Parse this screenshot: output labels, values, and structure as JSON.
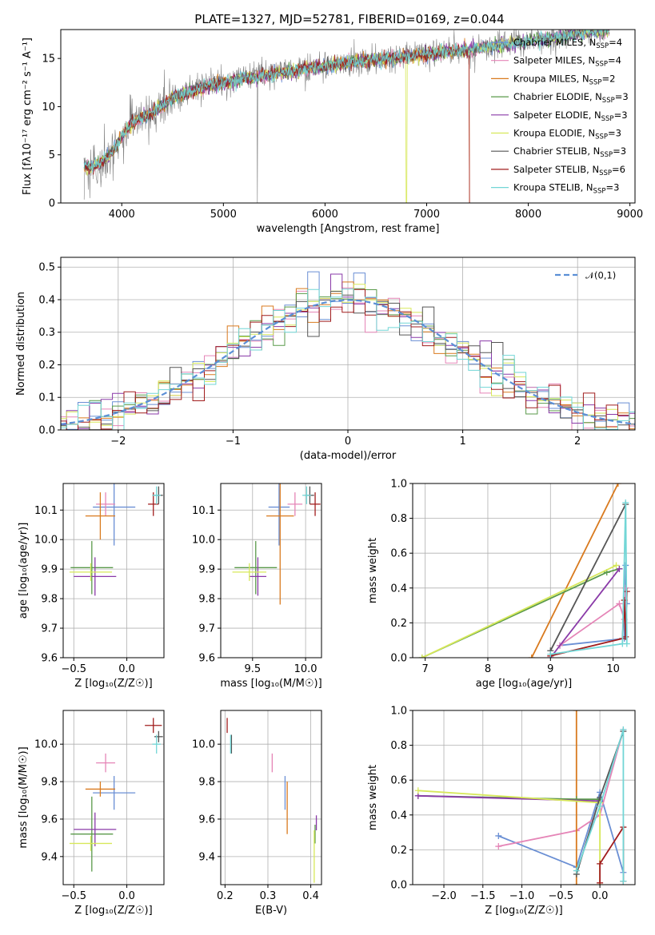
{
  "figure": {
    "title": "PLATE=1327, MJD=52781, FIBERID=0169, z=0.044"
  },
  "colors": {
    "Chabrier MILES": "#6a8fd4",
    "Salpeter MILES": "#e585b7",
    "Kroupa MILES": "#d97a1e",
    "Chabrier ELODIE": "#5a9a4a",
    "Salpeter ELODIE": "#8a3aa8",
    "Kroupa ELODIE": "#d7e85a",
    "Chabrier STELIB": "#555555",
    "Salpeter STELIB": "#a11d1d",
    "Kroupa STELIB": "#72d6d6",
    "data": "#808080",
    "normal_curve": "#5b8fd6"
  },
  "chart_data": [
    {
      "id": "spectrum",
      "type": "line",
      "title": "PLATE=1327, MJD=52781, FIBERID=0169, z=0.044",
      "xlabel": "wavelength [Angstrom, rest frame]",
      "ylabel": "Flux [fλ10⁻¹⁷ erg cm⁻² s⁻¹ A⁻¹]",
      "xlim": [
        3400,
        9050
      ],
      "ylim": [
        0,
        18
      ],
      "xticks": [
        4000,
        5000,
        6000,
        7000,
        8000,
        9000
      ],
      "yticks": [
        0,
        5,
        10,
        15
      ],
      "grid": false,
      "legend_position": "upper right",
      "legend": [
        {
          "label": "Chabrier MILES, N",
          "sub": "SSP",
          "tail": "=4",
          "key": "Chabrier MILES"
        },
        {
          "label": "Salpeter MILES, N",
          "sub": "SSP",
          "tail": "=4",
          "key": "Salpeter MILES"
        },
        {
          "label": "Kroupa MILES, N",
          "sub": "SSP",
          "tail": "=2",
          "key": "Kroupa MILES"
        },
        {
          "label": "Chabrier ELODIE, N",
          "sub": "SSP",
          "tail": "=3",
          "key": "Chabrier ELODIE"
        },
        {
          "label": "Salpeter ELODIE, N",
          "sub": "SSP",
          "tail": "=3",
          "key": "Salpeter ELODIE"
        },
        {
          "label": "Kroupa ELODIE, N",
          "sub": "SSP",
          "tail": "=3",
          "key": "Kroupa ELODIE"
        },
        {
          "label": "Chabrier STELIB, N",
          "sub": "SSP",
          "tail": "=3",
          "key": "Chabrier STELIB"
        },
        {
          "label": "Salpeter STELIB, N",
          "sub": "SSP",
          "tail": "=6",
          "key": "Salpeter STELIB"
        },
        {
          "label": "Kroupa STELIB, N",
          "sub": "SSP",
          "tail": "=3",
          "key": "Kroupa STELIB"
        }
      ],
      "continuum": {
        "x": [
          3630,
          3700,
          3800,
          3900,
          4000,
          4100,
          4200,
          4300,
          4400,
          4500,
          4600,
          4800,
          5000,
          5200,
          5400,
          5600,
          5800,
          6000,
          6200,
          6400,
          6600,
          6800,
          7000,
          7200,
          7400,
          7600,
          7800,
          8000,
          8200,
          8400,
          8600,
          8800
        ],
        "y": [
          3.8,
          3.6,
          4.2,
          5.2,
          7.0,
          8.3,
          8.9,
          9.4,
          10.2,
          10.9,
          11.3,
          12.0,
          12.5,
          12.9,
          13.2,
          13.6,
          13.9,
          14.2,
          14.5,
          14.8,
          15.0,
          15.2,
          15.4,
          15.7,
          15.9,
          16.2,
          16.5,
          16.8,
          17.1,
          17.4,
          17.7,
          18.0
        ]
      }
    },
    {
      "id": "residuals",
      "type": "line",
      "xlabel": "(data-model)/error",
      "ylabel": "Normed distribution",
      "xlim": [
        -2.5,
        2.5
      ],
      "ylim": [
        0,
        0.53
      ],
      "xticks": [
        -2,
        -1,
        0,
        1,
        2
      ],
      "yticks": [
        0.0,
        0.1,
        0.2,
        0.3,
        0.4,
        0.5
      ],
      "grid": true,
      "legend_position": "upper right",
      "legend_label": "𝒩(0,1)",
      "histogram_bin_width": 0.1,
      "histogram_scatter": 0.03
    },
    {
      "id": "age_vs_Z",
      "type": "scatter",
      "xlabel": "Z [log10(Z/Z☉)]",
      "ylabel": "age [log10(age/yr)]",
      "xlim": [
        -0.6,
        0.35
      ],
      "ylim": [
        9.6,
        10.19
      ],
      "xticks": [
        -0.5,
        0.0
      ],
      "yticks": [
        9.6,
        9.7,
        9.8,
        9.9,
        10.0,
        10.1
      ],
      "grid": true,
      "points": [
        {
          "key": "Chabrier MILES",
          "x": -0.12,
          "y": 10.11,
          "xerr": 0.2,
          "yerr": 0.13
        },
        {
          "key": "Salpeter MILES",
          "x": -0.2,
          "y": 10.12,
          "xerr": 0.09,
          "yerr": 0.04
        },
        {
          "key": "Kroupa MILES",
          "x": -0.25,
          "y": 10.08,
          "xerr": 0.14,
          "yerr": 0.08
        },
        {
          "key": "Chabrier ELODIE",
          "x": -0.33,
          "y": 9.905,
          "xerr": 0.2,
          "yerr": 0.09
        },
        {
          "key": "Salpeter ELODIE",
          "x": -0.3,
          "y": 9.875,
          "xerr": 0.2,
          "yerr": 0.065
        },
        {
          "key": "Kroupa ELODIE",
          "x": -0.34,
          "y": 9.89,
          "xerr": 0.2,
          "yerr": 0.03
        },
        {
          "key": "Chabrier STELIB",
          "x": 0.3,
          "y": 10.15,
          "xerr": 0.04,
          "yerr": 0.03
        },
        {
          "key": "Salpeter STELIB",
          "x": 0.25,
          "y": 10.12,
          "xerr": 0.05,
          "yerr": 0.04
        },
        {
          "key": "Kroupa STELIB",
          "x": 0.28,
          "y": 10.15,
          "xerr": 0.04,
          "yerr": 0.03
        }
      ]
    },
    {
      "id": "age_vs_mass",
      "type": "scatter",
      "xlabel": "mass [log10(M/M☉)]",
      "ylabel": "",
      "xlim": [
        9.2,
        10.15
      ],
      "ylim": [
        9.6,
        10.19
      ],
      "xticks": [
        9.5,
        10.0
      ],
      "yticks": [
        9.6,
        9.7,
        9.8,
        9.9,
        10.0,
        10.1
      ],
      "grid": true,
      "points": [
        {
          "key": "Chabrier MILES",
          "x": 9.75,
          "y": 10.11,
          "xerr": 0.1,
          "yerr": 0.13
        },
        {
          "key": "Salpeter MILES",
          "x": 9.9,
          "y": 10.12,
          "xerr": 0.07,
          "yerr": 0.04
        },
        {
          "key": "Kroupa MILES",
          "x": 9.76,
          "y": 10.08,
          "xerr": 0.13,
          "yerr": 0.3
        },
        {
          "key": "Chabrier ELODIE",
          "x": 9.53,
          "y": 9.905,
          "xerr": 0.2,
          "yerr": 0.09
        },
        {
          "key": "Salpeter ELODIE",
          "x": 9.55,
          "y": 9.875,
          "xerr": 0.08,
          "yerr": 0.065
        },
        {
          "key": "Kroupa ELODIE",
          "x": 9.47,
          "y": 9.89,
          "xerr": 0.16,
          "yerr": 0.03
        },
        {
          "key": "Chabrier STELIB",
          "x": 10.04,
          "y": 10.15,
          "xerr": 0.04,
          "yerr": 0.03
        },
        {
          "key": "Salpeter STELIB",
          "x": 10.09,
          "y": 10.12,
          "xerr": 0.05,
          "yerr": 0.04
        },
        {
          "key": "Kroupa STELIB",
          "x": 10.01,
          "y": 10.15,
          "xerr": 0.04,
          "yerr": 0.03
        }
      ]
    },
    {
      "id": "massweight_vs_age",
      "type": "line",
      "xlabel": "age [log10(age/yr)]",
      "ylabel": "mass weight",
      "xlim": [
        6.8,
        10.35
      ],
      "ylim": [
        0,
        1.0
      ],
      "xticks": [
        7,
        8,
        9,
        10
      ],
      "yticks": [
        0.0,
        0.2,
        0.4,
        0.6,
        0.8,
        1.0
      ],
      "grid": true,
      "series": [
        {
          "key": "Chabrier MILES",
          "x": [
            9.15,
            10.18,
            10.2,
            10.22
          ],
          "y": [
            0.07,
            0.11,
            0.53,
            0.31
          ]
        },
        {
          "key": "Salpeter MILES",
          "x": [
            9.15,
            10.1,
            10.18,
            10.2
          ],
          "y": [
            0.07,
            0.31,
            0.22,
            0.4
          ]
        },
        {
          "key": "Kroupa MILES",
          "x": [
            8.7,
            10.08
          ],
          "y": [
            0.0,
            1.0
          ]
        },
        {
          "key": "Chabrier ELODIE",
          "x": [
            6.95,
            9.9,
            10.1
          ],
          "y": [
            0.0,
            0.49,
            0.51
          ]
        },
        {
          "key": "Salpeter ELODIE",
          "x": [
            9.0,
            10.1
          ],
          "y": [
            0.0,
            0.51
          ]
        },
        {
          "key": "Kroupa ELODIE",
          "x": [
            6.95,
            10.05
          ],
          "y": [
            0.0,
            0.53
          ]
        },
        {
          "key": "Chabrier STELIB",
          "x": [
            9.0,
            10.2
          ],
          "y": [
            0.04,
            0.88
          ]
        },
        {
          "key": "Salpeter STELIB",
          "x": [
            9.0,
            10.15,
            10.18,
            10.2,
            10.22
          ],
          "y": [
            0.01,
            0.11,
            0.33,
            0.12,
            0.38
          ]
        },
        {
          "key": "Kroupa STELIB",
          "x": [
            9.0,
            10.15,
            10.2,
            10.22
          ],
          "y": [
            0.02,
            0.08,
            0.89,
            0.08
          ]
        }
      ]
    },
    {
      "id": "mass_vs_Z",
      "type": "scatter",
      "xlabel": "Z [log10(Z/Z☉)]",
      "ylabel": "mass [log10(M/M☉)]",
      "xlim": [
        -0.6,
        0.35
      ],
      "ylim": [
        9.25,
        10.18
      ],
      "xticks": [
        -0.5,
        0.0
      ],
      "yticks": [
        9.4,
        9.6,
        9.8,
        10.0
      ],
      "grid": true,
      "points": [
        {
          "key": "Chabrier MILES",
          "x": -0.12,
          "y": 9.74,
          "xerr": 0.2,
          "yerr": 0.09
        },
        {
          "key": "Salpeter MILES",
          "x": -0.2,
          "y": 9.9,
          "xerr": 0.09,
          "yerr": 0.05
        },
        {
          "key": "Kroupa MILES",
          "x": -0.25,
          "y": 9.76,
          "xerr": 0.14,
          "yerr": 0.04
        },
        {
          "key": "Chabrier ELODIE",
          "x": -0.33,
          "y": 9.52,
          "xerr": 0.2,
          "yerr": 0.2
        },
        {
          "key": "Salpeter ELODIE",
          "x": -0.3,
          "y": 9.545,
          "xerr": 0.2,
          "yerr": 0.09
        },
        {
          "key": "Kroupa ELODIE",
          "x": -0.34,
          "y": 9.47,
          "xerr": 0.2,
          "yerr": 0.04
        },
        {
          "key": "Chabrier STELIB",
          "x": 0.3,
          "y": 10.04,
          "xerr": 0.04,
          "yerr": 0.03
        },
        {
          "key": "Salpeter STELIB",
          "x": 0.25,
          "y": 10.1,
          "xerr": 0.08,
          "yerr": 0.04
        },
        {
          "key": "Kroupa STELIB",
          "x": 0.28,
          "y": 10.0,
          "xerr": 0.04,
          "yerr": 0.05
        }
      ]
    },
    {
      "id": "mass_vs_EBV",
      "type": "scatter",
      "xlabel": "E(B-V)",
      "ylabel": "",
      "xlim": [
        0.19,
        0.425
      ],
      "ylim": [
        9.25,
        10.18
      ],
      "xticks": [
        0.2,
        0.3,
        0.4
      ],
      "yticks": [
        9.4,
        9.6,
        9.8,
        10.0
      ],
      "grid": true,
      "points": [
        {
          "key": "Chabrier MILES",
          "x": 0.34,
          "y": 9.74,
          "xerr": 0,
          "yerr": 0.09
        },
        {
          "key": "Salpeter MILES",
          "x": 0.31,
          "y": 9.9,
          "xerr": 0,
          "yerr": 0.05
        },
        {
          "key": "Kroupa MILES",
          "x": 0.345,
          "y": 9.66,
          "xerr": 0,
          "yerr": 0.14
        },
        {
          "key": "Chabrier ELODIE",
          "x": 0.41,
          "y": 9.52,
          "xerr": 0,
          "yerr": 0.05
        },
        {
          "key": "Salpeter ELODIE",
          "x": 0.413,
          "y": 9.58,
          "xerr": 0,
          "yerr": 0.04
        },
        {
          "key": "Kroupa ELODIE",
          "x": 0.408,
          "y": 9.4,
          "xerr": 0,
          "yerr": 0.14
        },
        {
          "key": "Chabrier STELIB",
          "x": 0.215,
          "y": 10.0,
          "xerr": 0,
          "yerr": 0.05
        },
        {
          "key": "Salpeter STELIB",
          "x": 0.205,
          "y": 10.1,
          "xerr": 0,
          "yerr": 0.04
        },
        {
          "key": "Kroupa STELIB",
          "x": 0.213,
          "y": 10.0,
          "xerr": 0,
          "yerr": 0.05
        }
      ]
    },
    {
      "id": "massweight_vs_Z",
      "type": "line",
      "xlabel": "Z [log10(Z/Z☉)]",
      "ylabel": "mass weight",
      "xlim": [
        -2.4,
        0.45
      ],
      "ylim": [
        0,
        1.0
      ],
      "xticks": [
        -2.0,
        -1.5,
        -1.0,
        -0.5,
        0.0
      ],
      "yticks": [
        0.0,
        0.2,
        0.4,
        0.6,
        0.8,
        1.0
      ],
      "grid": true,
      "series": [
        {
          "key": "Chabrier MILES",
          "x": [
            -1.3,
            -0.3,
            0.0,
            0.3
          ],
          "y": [
            0.28,
            0.1,
            0.53,
            0.07
          ]
        },
        {
          "key": "Salpeter MILES",
          "x": [
            -1.3,
            -0.3,
            0.0,
            0.3
          ],
          "y": [
            0.22,
            0.31,
            0.4,
            0.89
          ]
        },
        {
          "key": "Kroupa MILES",
          "x": [
            -0.3,
            -0.3
          ],
          "y": [
            0.0,
            1.0
          ]
        },
        {
          "key": "Chabrier ELODIE",
          "x": [
            -2.33,
            -0.3,
            0.0
          ],
          "y": [
            0.51,
            0.49,
            0.49
          ]
        },
        {
          "key": "Salpeter ELODIE",
          "x": [
            -2.33,
            0.0
          ],
          "y": [
            0.51,
            0.48
          ]
        },
        {
          "key": "Kroupa ELODIE",
          "x": [
            -2.33,
            0.0,
            0.0
          ],
          "y": [
            0.54,
            0.47,
            0.0
          ]
        },
        {
          "key": "Chabrier STELIB",
          "x": [
            -0.3,
            0.0,
            0.3
          ],
          "y": [
            0.06,
            0.5,
            0.88
          ]
        },
        {
          "key": "Salpeter STELIB",
          "x": [
            0.0,
            0.0,
            0.3,
            0.3
          ],
          "y": [
            0.01,
            0.12,
            0.33,
            0.02
          ]
        },
        {
          "key": "Kroupa STELIB",
          "x": [
            -0.3,
            0.0,
            0.3,
            0.3
          ],
          "y": [
            0.08,
            0.45,
            0.89,
            0.02
          ]
        }
      ]
    }
  ]
}
